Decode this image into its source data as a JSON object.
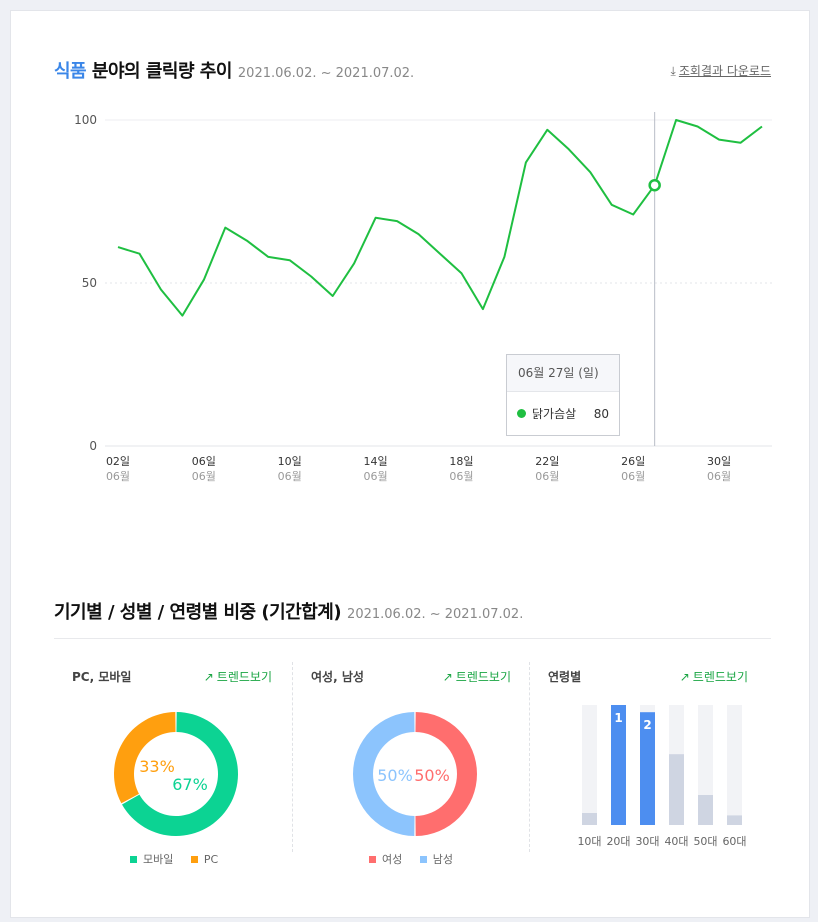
{
  "header": {
    "title_accent": "식품",
    "title_rest": " 분야의 클릭량 추이",
    "date_range": "2021.06.02. ~ 2021.07.02.",
    "download_label": "조회결과 다운로드"
  },
  "tooltip": {
    "date": "06월 27일 (일)",
    "series_name": "닭가슴살",
    "value": "80"
  },
  "chart_data": {
    "type": "line",
    "y_ticks": [
      "100",
      "50",
      "0"
    ],
    "ylim": [
      0,
      100
    ],
    "x_tick_labels": [
      {
        "day": "02일",
        "month": "06월"
      },
      {
        "day": "06일",
        "month": "06월"
      },
      {
        "day": "10일",
        "month": "06월"
      },
      {
        "day": "14일",
        "month": "06월"
      },
      {
        "day": "18일",
        "month": "06월"
      },
      {
        "day": "22일",
        "month": "06월"
      },
      {
        "day": "26일",
        "month": "06월"
      },
      {
        "day": "30일",
        "month": "06월"
      }
    ],
    "series": [
      {
        "name": "닭가슴살",
        "color": "#1fbf41",
        "x": [
          "06.02",
          "06.03",
          "06.04",
          "06.05",
          "06.06",
          "06.07",
          "06.08",
          "06.09",
          "06.10",
          "06.11",
          "06.12",
          "06.13",
          "06.14",
          "06.15",
          "06.16",
          "06.17",
          "06.18",
          "06.19",
          "06.20",
          "06.21",
          "06.22",
          "06.23",
          "06.24",
          "06.25",
          "06.26",
          "06.27",
          "06.28",
          "06.29",
          "06.30",
          "07.01",
          "07.02"
        ],
        "values": [
          61,
          59,
          48,
          40,
          51,
          67,
          63,
          58,
          57,
          52,
          46,
          56,
          70,
          69,
          65,
          59,
          53,
          42,
          58,
          87,
          97,
          91,
          84,
          74,
          71,
          80,
          100,
          98,
          94,
          93,
          98
        ]
      }
    ],
    "highlight_index": 25,
    "grid": true
  },
  "section2": {
    "title": "기기별 / 성별 / 연령별 비중 (기간합계)",
    "date_range": "2021.06.02. ~ 2021.07.02.",
    "trend_label": "트렌드보기",
    "device": {
      "title": "PC, 모바일",
      "pc_pct": "33%",
      "mobile_pct": "67%",
      "pc_value": 33,
      "mobile_value": 67,
      "legend_mobile": "모바일",
      "legend_pc": "PC",
      "color_mobile": "#0cd393",
      "color_pc": "#ff9f0f"
    },
    "gender": {
      "title": "여성, 남성",
      "female_pct": "50%",
      "male_pct": "50%",
      "female_value": 50,
      "male_value": 50,
      "legend_female": "여성",
      "legend_male": "남성",
      "color_female": "#ff6e6e",
      "color_male": "#8cc4fd"
    },
    "age": {
      "title": "연령별",
      "groups": [
        "10대",
        "20대",
        "30대",
        "40대",
        "50대",
        "60대"
      ],
      "values": [
        10,
        100,
        94,
        59,
        25,
        8
      ],
      "ranks": [
        "",
        "1",
        "2",
        "",
        "",
        ""
      ],
      "color_top": "#4d8ef0",
      "color_other": "#cfd5e2",
      "color_track": "#f2f3f6"
    }
  }
}
